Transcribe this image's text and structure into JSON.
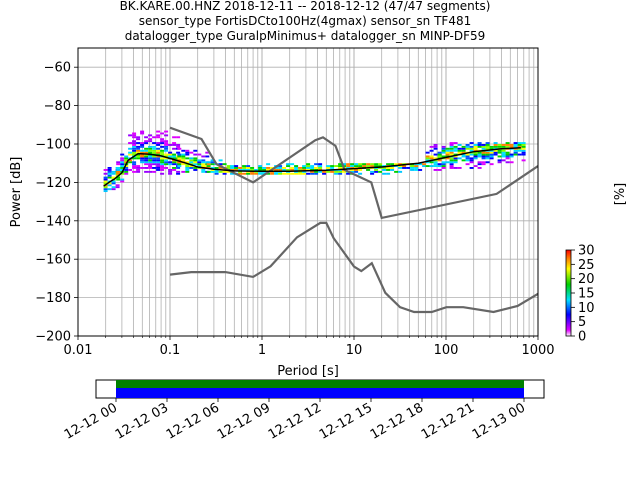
{
  "chart_data": {
    "type": "heatmap",
    "title_lines": [
      "BK.KARE.00.HNZ   2018-12-11 -- 2018-12-12  (47/47 segments)",
      "sensor_type FortisDCto100Hz(4gmax) sensor_sn TF481",
      "datalogger_type GuralpMinimus+ datalogger_sn MINP-DF59"
    ],
    "xlabel": "Period [s]",
    "ylabel": "Power [dB]",
    "x_scale": "log",
    "xlim": [
      0.01,
      1000
    ],
    "ylim": [
      -200,
      -50
    ],
    "x_ticks": [
      {
        "value": 0.01,
        "label": "0.01"
      },
      {
        "value": 0.1,
        "label": "0.1"
      },
      {
        "value": 1,
        "label": "1"
      },
      {
        "value": 10,
        "label": "10"
      },
      {
        "value": 100,
        "label": "100"
      },
      {
        "value": 1000,
        "label": "1000"
      }
    ],
    "y_ticks": [
      {
        "value": -60,
        "label": "−60"
      },
      {
        "value": -80,
        "label": "−80"
      },
      {
        "value": -100,
        "label": "−100"
      },
      {
        "value": -120,
        "label": "−120"
      },
      {
        "value": -140,
        "label": "−140"
      },
      {
        "value": -160,
        "label": "−160"
      },
      {
        "value": -180,
        "label": "−180"
      },
      {
        "value": -200,
        "label": "−200"
      }
    ],
    "grid": true,
    "noise_model_color": "#666666",
    "mean_line_color": "#000000",
    "high_noise_model": [
      [
        0.1,
        -91.5
      ],
      [
        0.22,
        -97.4
      ],
      [
        0.32,
        -110.5
      ],
      [
        0.8,
        -120
      ],
      [
        3.8,
        -98
      ],
      [
        4.6,
        -96.5
      ],
      [
        6.3,
        -101
      ],
      [
        7.9,
        -113.5
      ],
      [
        15.4,
        -120
      ],
      [
        20,
        -138.5
      ],
      [
        354.8,
        -126
      ],
      [
        1000,
        -111.5
      ]
    ],
    "low_noise_model": [
      [
        0.1,
        -168
      ],
      [
        0.17,
        -166.7
      ],
      [
        0.4,
        -166.7
      ],
      [
        0.8,
        -169.2
      ],
      [
        1.24,
        -163.7
      ],
      [
        2.4,
        -148.6
      ],
      [
        4.3,
        -141.1
      ],
      [
        5,
        -141.1
      ],
      [
        6,
        -149
      ],
      [
        10,
        -163.8
      ],
      [
        12,
        -166.2
      ],
      [
        15.6,
        -162.1
      ],
      [
        21.9,
        -177.5
      ],
      [
        31.6,
        -185
      ],
      [
        45,
        -187.5
      ],
      [
        70,
        -187.5
      ],
      [
        101,
        -185
      ],
      [
        154,
        -185
      ],
      [
        328,
        -187.5
      ],
      [
        600,
        -184.4
      ],
      [
        1000,
        -178
      ]
    ],
    "mean_psd": [
      [
        0.019,
        -122
      ],
      [
        0.022,
        -119.8
      ],
      [
        0.025,
        -118.2
      ],
      [
        0.03,
        -115
      ],
      [
        0.035,
        -108.5
      ],
      [
        0.045,
        -105
      ],
      [
        0.06,
        -105.3
      ],
      [
        0.08,
        -106.2
      ],
      [
        0.1,
        -107.5
      ],
      [
        0.15,
        -110
      ],
      [
        0.2,
        -112
      ],
      [
        0.3,
        -113.2
      ],
      [
        0.5,
        -114
      ],
      [
        1,
        -114.2
      ],
      [
        2,
        -114.2
      ],
      [
        5,
        -113.7
      ],
      [
        10,
        -112.8
      ],
      [
        20,
        -112
      ],
      [
        50,
        -110
      ],
      [
        100,
        -107
      ],
      [
        200,
        -104
      ],
      [
        400,
        -102.5
      ],
      [
        650,
        -102
      ]
    ],
    "colorbar": {
      "label": "[%]",
      "range": [
        0,
        30
      ],
      "ticks": [
        0,
        5,
        10,
        15,
        20,
        25,
        30
      ],
      "colors": [
        "#ffffff",
        "#e000ff",
        "#0000ff",
        "#00e0ff",
        "#00d000",
        "#ffff00",
        "#ff8000",
        "#ff0000"
      ]
    },
    "histogram_bands": [
      {
        "period_range": [
          0.019,
          0.026
        ],
        "db_range": [
          -125,
          -112
        ]
      },
      {
        "period_range": [
          0.026,
          0.035
        ],
        "db_range": [
          -120,
          -103
        ]
      },
      {
        "period_range": [
          0.035,
          0.12
        ],
        "db_range": [
          -116,
          -93
        ]
      },
      {
        "period_range": [
          0.12,
          0.25
        ],
        "db_range": [
          -115,
          -102
        ]
      },
      {
        "period_range": [
          0.25,
          0.45
        ],
        "db_range": [
          -116,
          -108
        ]
      },
      {
        "period_range": [
          0.45,
          60
        ],
        "db_range": [
          -116,
          -110
        ]
      },
      {
        "period_range": [
          60,
          700
        ],
        "db_range": [
          -114,
          -99
        ]
      }
    ]
  },
  "timeline": {
    "tick_labels": [
      "12-12 00",
      "12-12 03",
      "12-12 06",
      "12-12 09",
      "12-12 12",
      "12-12 15",
      "12-12 18",
      "12-12 21",
      "12-13 00"
    ],
    "coverage_color_top": "#008000",
    "coverage_color_bottom": "#0000ff"
  }
}
